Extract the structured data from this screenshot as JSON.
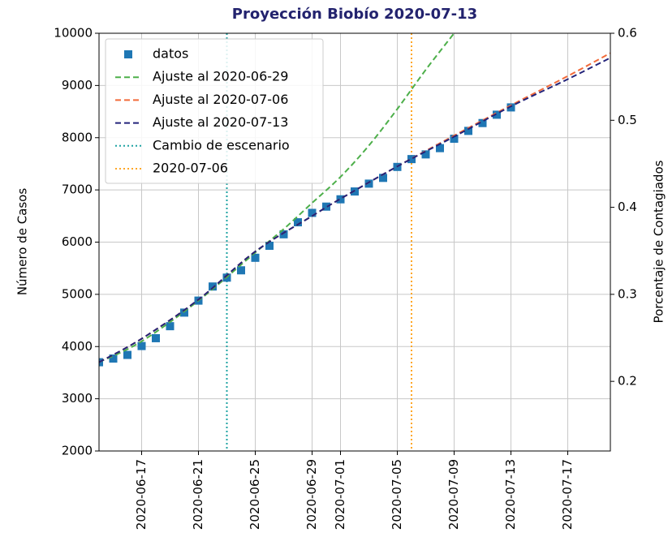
{
  "chart_data": {
    "type": "line",
    "title": "Proyección Biobío 2020-07-13",
    "ylabel": "Número de Casos",
    "y2label": "Porcentaje de Contagiados",
    "xlim": [
      "2020-06-14",
      "2020-07-20"
    ],
    "xticks": [
      "2020-06-17",
      "2020-06-21",
      "2020-06-25",
      "2020-06-29",
      "2020-07-01",
      "2020-07-05",
      "2020-07-09",
      "2020-07-13",
      "2020-07-17"
    ],
    "ylim": [
      2000,
      10000
    ],
    "yticks": [
      2000,
      3000,
      4000,
      5000,
      6000,
      7000,
      8000,
      9000,
      10000
    ],
    "y2lim": [
      0.12,
      0.6
    ],
    "y2ticks": [
      0.2,
      0.3,
      0.4,
      0.5,
      0.6
    ],
    "grid": true,
    "legend": "upper left",
    "series": [
      {
        "name": "datos",
        "color": "#1f77b4",
        "marker": "square",
        "x": [
          "2020-06-14",
          "2020-06-15",
          "2020-06-16",
          "2020-06-17",
          "2020-06-18",
          "2020-06-19",
          "2020-06-20",
          "2020-06-21",
          "2020-06-22",
          "2020-06-23",
          "2020-06-24",
          "2020-06-25",
          "2020-06-26",
          "2020-06-27",
          "2020-06-28",
          "2020-06-29",
          "2020-06-30",
          "2020-07-01",
          "2020-07-02",
          "2020-07-03",
          "2020-07-04",
          "2020-07-05",
          "2020-07-06",
          "2020-07-07",
          "2020-07-08",
          "2020-07-09",
          "2020-07-10",
          "2020-07-11",
          "2020-07-12",
          "2020-07-13"
        ],
        "values": [
          3700,
          3770,
          3840,
          4010,
          4160,
          4390,
          4650,
          4880,
          5150,
          5320,
          5460,
          5700,
          5930,
          6150,
          6380,
          6560,
          6680,
          6820,
          6970,
          7120,
          7230,
          7440,
          7590,
          7680,
          7800,
          7980,
          8130,
          8280,
          8440,
          8580
        ]
      },
      {
        "name": "Ajuste al 2020-06-29",
        "color": "#4daf4a",
        "dash": "dashed",
        "x": [
          "2020-06-14",
          "2020-06-17",
          "2020-06-21",
          "2020-06-25",
          "2020-06-27",
          "2020-06-29",
          "2020-07-01",
          "2020-07-03",
          "2020-07-05",
          "2020-07-07",
          "2020-07-09"
        ],
        "values": [
          3700,
          4100,
          4880,
          5800,
          6250,
          6750,
          7250,
          7850,
          8550,
          9300,
          10000
        ]
      },
      {
        "name": "Ajuste al 2020-07-06",
        "color": "#f26b3a",
        "dash": "dashed",
        "x": [
          "2020-06-14",
          "2020-06-17",
          "2020-06-21",
          "2020-06-25",
          "2020-06-29",
          "2020-07-01",
          "2020-07-05",
          "2020-07-09",
          "2020-07-13",
          "2020-07-17",
          "2020-07-20"
        ],
        "values": [
          3700,
          4150,
          4900,
          5820,
          6500,
          6830,
          7450,
          8040,
          8620,
          9180,
          9620
        ]
      },
      {
        "name": "Ajuste al 2020-07-13",
        "color": "#23237a",
        "dash": "dashed",
        "x": [
          "2020-06-14",
          "2020-06-17",
          "2020-06-21",
          "2020-06-25",
          "2020-06-29",
          "2020-07-01",
          "2020-07-05",
          "2020-07-09",
          "2020-07-13",
          "2020-07-17",
          "2020-07-20"
        ],
        "values": [
          3700,
          4150,
          4900,
          5820,
          6500,
          6830,
          7450,
          8020,
          8600,
          9120,
          9530
        ]
      }
    ],
    "vlines": [
      {
        "name": "Cambio de escenario",
        "color": "#1fa3a3",
        "x": "2020-06-23"
      },
      {
        "name": "2020-07-06",
        "color": "#ffa726",
        "x": "2020-07-06"
      }
    ]
  }
}
